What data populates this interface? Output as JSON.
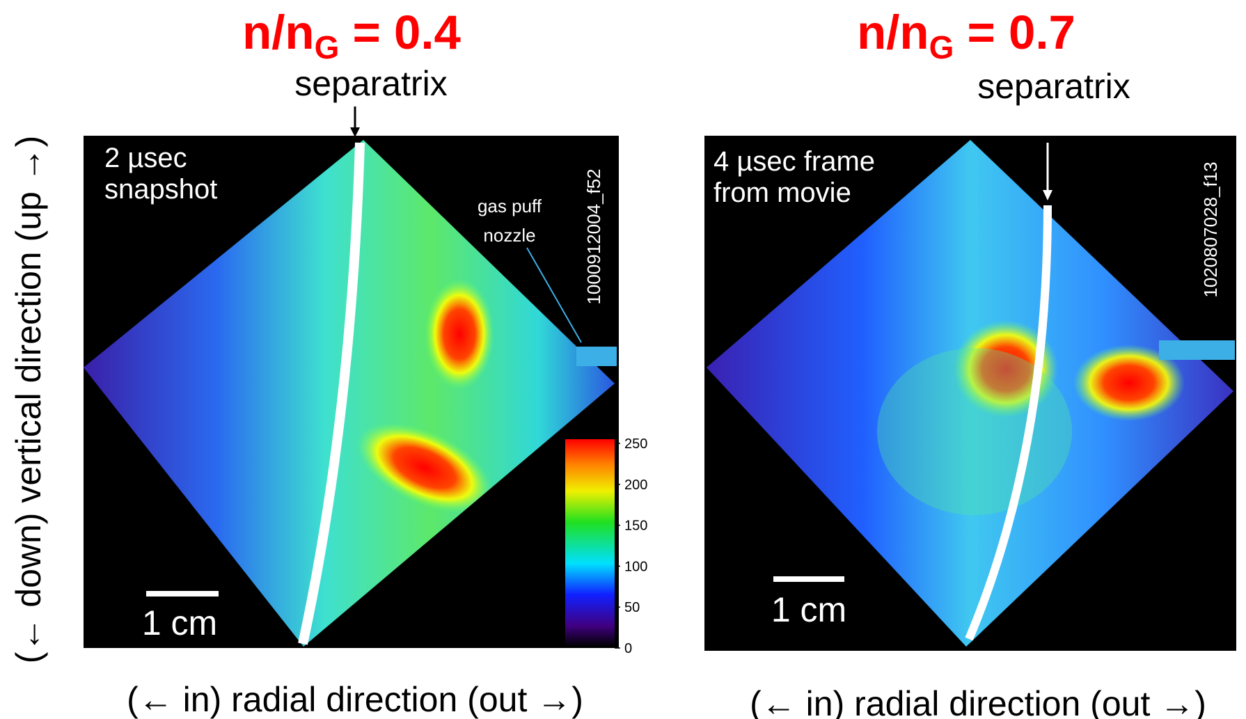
{
  "panels": [
    {
      "title": {
        "main": "n/n",
        "sub": "G",
        "rest": " = 0.4"
      },
      "marker": "separatrix",
      "caption": [
        "2 µsec",
        "snapshot"
      ],
      "shot_id": "1000912004_f52",
      "nozzle_label": [
        "gas puff",
        "nozzle"
      ],
      "scale_bar": "1 cm",
      "colorbar_ticks": [
        0,
        50,
        100,
        150,
        200,
        250
      ],
      "x_label": "(← in) radial direction (out →)"
    },
    {
      "title": {
        "main": "n/n",
        "sub": "G",
        "rest": " = 0.7"
      },
      "marker": "separatrix",
      "caption": [
        "4 µsec frame",
        "from movie"
      ],
      "shot_id": "1020807028_f13",
      "scale_bar": "1 cm",
      "x_label": "(← in) radial direction (out →)"
    }
  ],
  "y_label": "(← down) vertical direction (up →)"
}
